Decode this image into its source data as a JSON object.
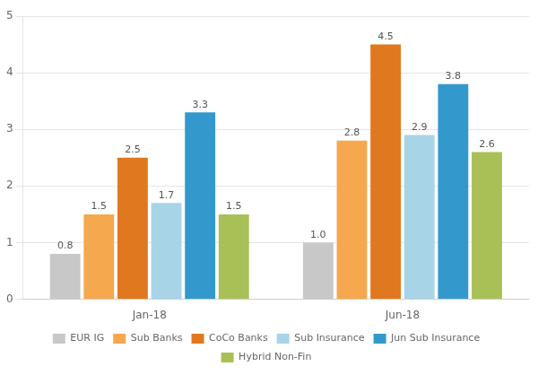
{
  "chart_data": {
    "type": "bar",
    "categories": [
      "Jan-18",
      "Jun-18"
    ],
    "series": [
      {
        "name": "EUR IG",
        "color": "#c8c8c8",
        "values": [
          0.8,
          1.0
        ],
        "value_labels": [
          "0.8",
          "1.0"
        ]
      },
      {
        "name": "Sub Banks",
        "color": "#f5a84e",
        "values": [
          1.5,
          2.8
        ]
      },
      {
        "name": "CoCo Banks",
        "color": "#e07820",
        "values": [
          2.5,
          4.5
        ]
      },
      {
        "name": "Sub Insurance",
        "color": "#a8d4e8",
        "values": [
          1.7,
          2.9
        ]
      },
      {
        "name": "Jun Sub Insurance",
        "color": "#3399cc",
        "values": [
          3.3,
          3.8
        ]
      },
      {
        "name": "Hybrid Non-Fin",
        "color": "#a8c055",
        "values": [
          1.5,
          2.6
        ]
      }
    ],
    "ylim": [
      0,
      5.0
    ],
    "yticks": [
      0,
      1,
      2,
      3,
      4,
      5
    ],
    "grid": true,
    "legend": "bottom",
    "data_labels": true
  }
}
